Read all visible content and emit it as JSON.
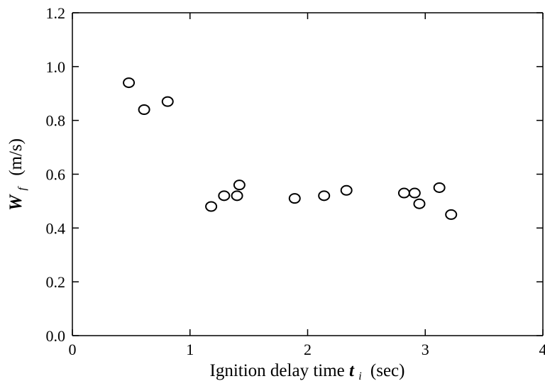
{
  "chart_data": {
    "type": "scatter",
    "title": "",
    "xlabel": "Ignition delay time",
    "xlabel_symbol": "t",
    "xlabel_subscript": "i",
    "xlabel_unit": "(sec)",
    "ylabel_symbol": "W",
    "ylabel_subscript": "f",
    "ylabel_unit": "(m/s)",
    "xlim": [
      0,
      4
    ],
    "ylim": [
      0.0,
      1.2
    ],
    "x_ticks": [
      0,
      1,
      2,
      3,
      4
    ],
    "x_tick_labels": [
      "0",
      "1",
      "2",
      "3",
      "4"
    ],
    "y_ticks": [
      0.0,
      0.2,
      0.4,
      0.6,
      0.8,
      1.0,
      1.2
    ],
    "y_tick_labels": [
      "0.0",
      "0.2",
      "0.4",
      "0.6",
      "0.8",
      "1.0",
      "1.2"
    ],
    "grid": false,
    "marker": "open-circle",
    "series": [
      {
        "points": [
          {
            "x": 0.48,
            "y": 0.94
          },
          {
            "x": 0.61,
            "y": 0.84
          },
          {
            "x": 0.81,
            "y": 0.87
          },
          {
            "x": 1.18,
            "y": 0.48
          },
          {
            "x": 1.29,
            "y": 0.52
          },
          {
            "x": 1.4,
            "y": 0.52
          },
          {
            "x": 1.42,
            "y": 0.56
          },
          {
            "x": 1.89,
            "y": 0.51
          },
          {
            "x": 2.14,
            "y": 0.52
          },
          {
            "x": 2.33,
            "y": 0.54
          },
          {
            "x": 2.82,
            "y": 0.53
          },
          {
            "x": 2.91,
            "y": 0.53
          },
          {
            "x": 2.95,
            "y": 0.49
          },
          {
            "x": 3.12,
            "y": 0.55
          },
          {
            "x": 3.22,
            "y": 0.45
          }
        ]
      }
    ]
  }
}
